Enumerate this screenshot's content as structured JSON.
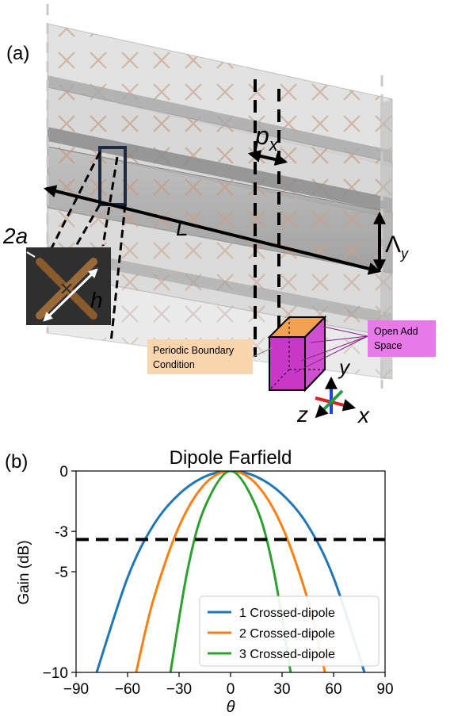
{
  "panel_a": {
    "label": "(a)",
    "dim_L": "L",
    "dim_px": "p",
    "dim_px_sub": "x",
    "dim_lambda": "Λ",
    "dim_lambda_sub": "y",
    "dim_2a": "2a",
    "dim_h": "h",
    "axis_x": "x",
    "axis_y": "y",
    "axis_z": "z",
    "boundary_label": "Periodic Boundary Condition",
    "open_space_label": "Open Add Space",
    "colors": {
      "slab": "#c8c8c8",
      "dipole": "#c9a08a",
      "boundary_box": "#f9d5ae",
      "open_box": "#e879e8",
      "cube_top": "#f4a14f",
      "cube_side": "#c937c9"
    }
  },
  "panel_b": {
    "label": "(b)",
    "chart_data": {
      "type": "line",
      "title": "Dipole Farfield",
      "xlabel": "θ",
      "ylabel": "Gain (dB)",
      "xlim": [
        -90,
        90
      ],
      "ylim": [
        -10,
        0
      ],
      "xticks": [
        -90,
        -60,
        -30,
        0,
        30,
        60,
        90
      ],
      "xtick_labels": [
        "−90",
        "−60",
        "−30",
        "0",
        "30",
        "60",
        "90"
      ],
      "yticks": [
        0,
        -3,
        -5,
        -10
      ],
      "ytick_labels": [
        "0",
        "-3",
        "-5",
        "−10"
      ],
      "legend_position": "lower-right",
      "hline": {
        "y": -3.4,
        "style": "dashed",
        "color": "#000000"
      },
      "series": [
        {
          "name": "1 Crossed-dipole",
          "color": "#1f77b4",
          "x": [
            -78,
            -60,
            -45,
            -30,
            -15,
            0,
            15,
            30,
            45,
            60,
            78
          ],
          "y": [
            -10,
            -5.3,
            -2.7,
            -1.15,
            -0.28,
            0,
            -0.28,
            -1.15,
            -2.7,
            -5.3,
            -10
          ]
        },
        {
          "name": "2 Crossed-dipole",
          "color": "#ff7f0e",
          "x": [
            -55,
            -45,
            -30,
            -15,
            0,
            15,
            30,
            45,
            55
          ],
          "y": [
            -10,
            -6.4,
            -2.75,
            -0.65,
            0,
            -0.65,
            -2.75,
            -6.4,
            -10
          ]
        },
        {
          "name": "3 Crossed-dipole",
          "color": "#2ca02c",
          "x": [
            -35,
            -25,
            -15,
            0,
            15,
            25,
            35
          ],
          "y": [
            -10,
            -4.9,
            -1.8,
            0,
            -1.8,
            -4.9,
            -10
          ]
        }
      ]
    }
  }
}
